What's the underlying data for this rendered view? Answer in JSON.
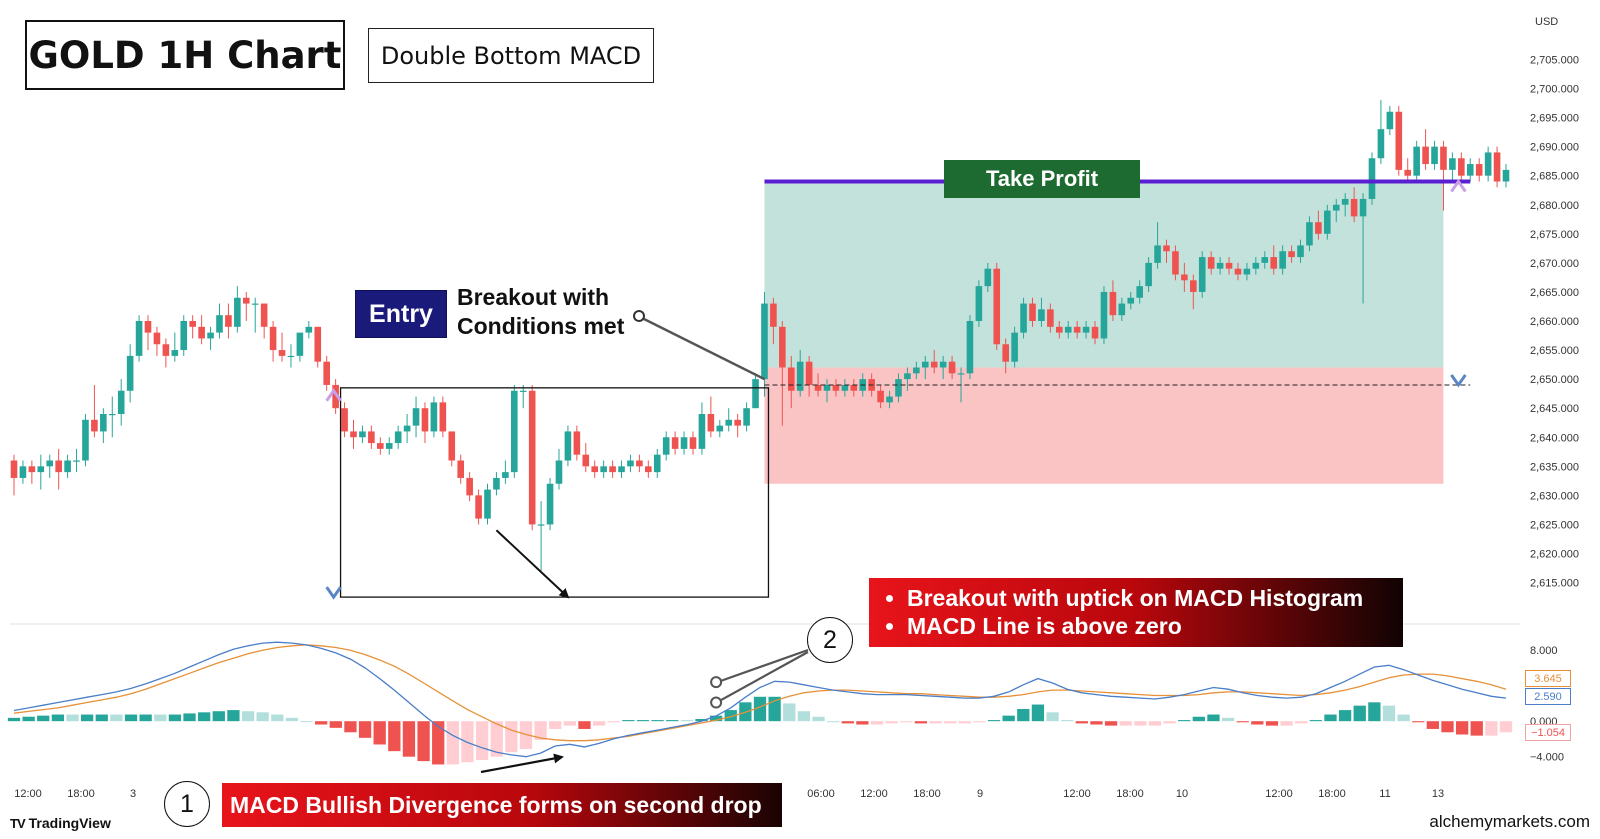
{
  "title": "GOLD 1H Chart",
  "subtitle": "Double Bottom MACD",
  "currency": "USD",
  "take_profit_label": "Take Profit",
  "entry_label": "Entry",
  "breakout_note": [
    "Breakout with",
    "Conditions met"
  ],
  "conditions": [
    "Breakout with uptick on MACD Histogram",
    "MACD Line is above zero"
  ],
  "divergence_note": "MACD Bullish Divergence forms on second drop",
  "badges": [
    "1",
    "2"
  ],
  "brand": "TradingView",
  "watermark": "alchemymarkets.com",
  "colors": {
    "bull": "#26a69a",
    "bear": "#ef5350",
    "take_profit_line": "#5a1fd1",
    "tp_zone": "#b9ddd6",
    "sl_zone": "#fbbebe",
    "macd_line": "#4a7ec8",
    "signal_line": "#e69138",
    "red_box": "#e8141b"
  },
  "chart_data": {
    "type": "candlestick",
    "symbol": "GOLD",
    "timeframe": "1H",
    "price_axis": {
      "ticks": [
        "2,705.000",
        "2,700.000",
        "2,695.000",
        "2,690.000",
        "2,685.000",
        "2,680.000",
        "2,675.000",
        "2,670.000",
        "2,665.000",
        "2,660.000",
        "2,655.000",
        "2,650.000",
        "2,645.000",
        "2,640.000",
        "2,635.000",
        "2,630.000",
        "2,625.000",
        "2,620.000",
        "2,615.000"
      ],
      "range": [
        2612,
        2708
      ]
    },
    "macd_axis": {
      "ticks": [
        "8.000",
        "0.000",
        "−4.000"
      ],
      "range": [
        -5.5,
        10.5
      ],
      "last_values": {
        "signal": "3.645",
        "macd": "2.590",
        "histogram": "−1.054"
      }
    },
    "time_labels": [
      "12:00",
      "18:00",
      "3",
      "06:00",
      "12:00",
      "18:00",
      "9",
      "12:00",
      "18:00",
      "10",
      "12:00",
      "18:00",
      "11",
      "13"
    ],
    "levels": {
      "take_profit": 2684,
      "entry": 2649,
      "stop_loss": 2632,
      "zone_top": 2684,
      "zone_split": 2652
    },
    "candles": [
      {
        "o": 2636,
        "h": 2637,
        "l": 2630,
        "c": 2633
      },
      {
        "o": 2633,
        "h": 2636,
        "l": 2632,
        "c": 2635
      },
      {
        "o": 2635,
        "h": 2636,
        "l": 2632,
        "c": 2634
      },
      {
        "o": 2634,
        "h": 2637,
        "l": 2631,
        "c": 2635
      },
      {
        "o": 2635,
        "h": 2637,
        "l": 2633,
        "c": 2636
      },
      {
        "o": 2636,
        "h": 2638,
        "l": 2631,
        "c": 2634
      },
      {
        "o": 2634,
        "h": 2637,
        "l": 2633,
        "c": 2636
      },
      {
        "o": 2636,
        "h": 2638,
        "l": 2634,
        "c": 2636
      },
      {
        "o": 2636,
        "h": 2644,
        "l": 2635,
        "c": 2643
      },
      {
        "o": 2643,
        "h": 2649,
        "l": 2640,
        "c": 2641
      },
      {
        "o": 2641,
        "h": 2645,
        "l": 2639,
        "c": 2644
      },
      {
        "o": 2644,
        "h": 2647,
        "l": 2640,
        "c": 2644
      },
      {
        "o": 2644,
        "h": 2650,
        "l": 2642,
        "c": 2648
      },
      {
        "o": 2648,
        "h": 2656,
        "l": 2646,
        "c": 2654
      },
      {
        "o": 2654,
        "h": 2661,
        "l": 2653,
        "c": 2660
      },
      {
        "o": 2660,
        "h": 2661,
        "l": 2655,
        "c": 2658
      },
      {
        "o": 2658,
        "h": 2659,
        "l": 2654,
        "c": 2656
      },
      {
        "o": 2656,
        "h": 2657,
        "l": 2652,
        "c": 2654
      },
      {
        "o": 2654,
        "h": 2658,
        "l": 2653,
        "c": 2655
      },
      {
        "o": 2655,
        "h": 2661,
        "l": 2654,
        "c": 2660
      },
      {
        "o": 2660,
        "h": 2661,
        "l": 2657,
        "c": 2659
      },
      {
        "o": 2659,
        "h": 2661,
        "l": 2656,
        "c": 2657
      },
      {
        "o": 2657,
        "h": 2659,
        "l": 2655,
        "c": 2658
      },
      {
        "o": 2658,
        "h": 2663,
        "l": 2657,
        "c": 2661
      },
      {
        "o": 2661,
        "h": 2663,
        "l": 2657,
        "c": 2659
      },
      {
        "o": 2659,
        "h": 2666,
        "l": 2658,
        "c": 2664
      },
      {
        "o": 2664,
        "h": 2665,
        "l": 2660,
        "c": 2663
      },
      {
        "o": 2663,
        "h": 2664,
        "l": 2658,
        "c": 2663
      },
      {
        "o": 2663,
        "h": 2663,
        "l": 2657,
        "c": 2659
      },
      {
        "o": 2659,
        "h": 2660,
        "l": 2653,
        "c": 2655
      },
      {
        "o": 2655,
        "h": 2658,
        "l": 2653,
        "c": 2654
      },
      {
        "o": 2654,
        "h": 2656,
        "l": 2652,
        "c": 2654
      },
      {
        "o": 2654,
        "h": 2658,
        "l": 2653,
        "c": 2658
      },
      {
        "o": 2658,
        "h": 2660,
        "l": 2657,
        "c": 2659
      },
      {
        "o": 2659,
        "h": 2659,
        "l": 2652,
        "c": 2653
      },
      {
        "o": 2653,
        "h": 2654,
        "l": 2648,
        "c": 2649
      },
      {
        "o": 2649,
        "h": 2650,
        "l": 2644,
        "c": 2645
      },
      {
        "o": 2645,
        "h": 2646,
        "l": 2640,
        "c": 2641
      },
      {
        "o": 2641,
        "h": 2643,
        "l": 2638,
        "c": 2640
      },
      {
        "o": 2640,
        "h": 2642,
        "l": 2639,
        "c": 2641
      },
      {
        "o": 2641,
        "h": 2642,
        "l": 2638,
        "c": 2639
      },
      {
        "o": 2639,
        "h": 2640,
        "l": 2637,
        "c": 2638
      },
      {
        "o": 2638,
        "h": 2640,
        "l": 2637,
        "c": 2639
      },
      {
        "o": 2639,
        "h": 2642,
        "l": 2638,
        "c": 2641
      },
      {
        "o": 2641,
        "h": 2644,
        "l": 2639,
        "c": 2642
      },
      {
        "o": 2642,
        "h": 2647,
        "l": 2640,
        "c": 2645
      },
      {
        "o": 2645,
        "h": 2646,
        "l": 2639,
        "c": 2641
      },
      {
        "o": 2641,
        "h": 2647,
        "l": 2640,
        "c": 2646
      },
      {
        "o": 2646,
        "h": 2647,
        "l": 2640,
        "c": 2641
      },
      {
        "o": 2641,
        "h": 2641,
        "l": 2635,
        "c": 2636
      },
      {
        "o": 2636,
        "h": 2637,
        "l": 2632,
        "c": 2633
      },
      {
        "o": 2633,
        "h": 2634,
        "l": 2629,
        "c": 2630
      },
      {
        "o": 2630,
        "h": 2631,
        "l": 2625,
        "c": 2626
      },
      {
        "o": 2626,
        "h": 2632,
        "l": 2625,
        "c": 2631
      },
      {
        "o": 2631,
        "h": 2634,
        "l": 2630,
        "c": 2633
      },
      {
        "o": 2633,
        "h": 2636,
        "l": 2632,
        "c": 2634
      },
      {
        "o": 2634,
        "h": 2649,
        "l": 2633,
        "c": 2648
      },
      {
        "o": 2648,
        "h": 2649,
        "l": 2645,
        "c": 2648
      },
      {
        "o": 2648,
        "h": 2649,
        "l": 2624,
        "c": 2625
      },
      {
        "o": 2625,
        "h": 2629,
        "l": 2617,
        "c": 2625
      },
      {
        "o": 2625,
        "h": 2633,
        "l": 2624,
        "c": 2632
      },
      {
        "o": 2632,
        "h": 2638,
        "l": 2631,
        "c": 2636
      },
      {
        "o": 2636,
        "h": 2642,
        "l": 2635,
        "c": 2641
      },
      {
        "o": 2641,
        "h": 2642,
        "l": 2636,
        "c": 2637
      },
      {
        "o": 2637,
        "h": 2639,
        "l": 2634,
        "c": 2635
      },
      {
        "o": 2635,
        "h": 2636,
        "l": 2633,
        "c": 2634
      },
      {
        "o": 2634,
        "h": 2636,
        "l": 2633,
        "c": 2635
      },
      {
        "o": 2635,
        "h": 2636,
        "l": 2633,
        "c": 2634
      },
      {
        "o": 2634,
        "h": 2636,
        "l": 2633,
        "c": 2635
      },
      {
        "o": 2635,
        "h": 2637,
        "l": 2634,
        "c": 2636
      },
      {
        "o": 2636,
        "h": 2637,
        "l": 2634,
        "c": 2635
      },
      {
        "o": 2635,
        "h": 2636,
        "l": 2633,
        "c": 2634
      },
      {
        "o": 2634,
        "h": 2638,
        "l": 2633,
        "c": 2637
      },
      {
        "o": 2637,
        "h": 2641,
        "l": 2636,
        "c": 2640
      },
      {
        "o": 2640,
        "h": 2641,
        "l": 2637,
        "c": 2638
      },
      {
        "o": 2638,
        "h": 2641,
        "l": 2637,
        "c": 2640
      },
      {
        "o": 2640,
        "h": 2641,
        "l": 2637,
        "c": 2638
      },
      {
        "o": 2638,
        "h": 2646,
        "l": 2637,
        "c": 2644
      },
      {
        "o": 2644,
        "h": 2647,
        "l": 2640,
        "c": 2641
      },
      {
        "o": 2641,
        "h": 2643,
        "l": 2640,
        "c": 2642
      },
      {
        "o": 2642,
        "h": 2645,
        "l": 2641,
        "c": 2643
      },
      {
        "o": 2643,
        "h": 2644,
        "l": 2640,
        "c": 2642
      },
      {
        "o": 2642,
        "h": 2646,
        "l": 2641,
        "c": 2645
      },
      {
        "o": 2645,
        "h": 2651,
        "l": 2645,
        "c": 2650
      },
      {
        "o": 2650,
        "h": 2665,
        "l": 2647,
        "c": 2663
      },
      {
        "o": 2663,
        "h": 2664,
        "l": 2656,
        "c": 2659
      },
      {
        "o": 2659,
        "h": 2660,
        "l": 2642,
        "c": 2652
      },
      {
        "o": 2652,
        "h": 2654,
        "l": 2645,
        "c": 2648
      },
      {
        "o": 2648,
        "h": 2655,
        "l": 2647,
        "c": 2653
      },
      {
        "o": 2653,
        "h": 2654,
        "l": 2647,
        "c": 2649
      },
      {
        "o": 2649,
        "h": 2651,
        "l": 2647,
        "c": 2648
      },
      {
        "o": 2648,
        "h": 2650,
        "l": 2646,
        "c": 2649
      },
      {
        "o": 2649,
        "h": 2650,
        "l": 2647,
        "c": 2648
      },
      {
        "o": 2648,
        "h": 2650,
        "l": 2647,
        "c": 2649
      },
      {
        "o": 2649,
        "h": 2650,
        "l": 2647,
        "c": 2648
      },
      {
        "o": 2648,
        "h": 2651,
        "l": 2647,
        "c": 2650
      },
      {
        "o": 2650,
        "h": 2651,
        "l": 2647,
        "c": 2648
      },
      {
        "o": 2648,
        "h": 2649,
        "l": 2645,
        "c": 2646
      },
      {
        "o": 2646,
        "h": 2648,
        "l": 2645,
        "c": 2647
      },
      {
        "o": 2647,
        "h": 2651,
        "l": 2646,
        "c": 2650
      },
      {
        "o": 2650,
        "h": 2652,
        "l": 2648,
        "c": 2651
      },
      {
        "o": 2651,
        "h": 2653,
        "l": 2650,
        "c": 2652
      },
      {
        "o": 2652,
        "h": 2654,
        "l": 2650,
        "c": 2653
      },
      {
        "o": 2653,
        "h": 2655,
        "l": 2651,
        "c": 2652
      },
      {
        "o": 2652,
        "h": 2654,
        "l": 2650,
        "c": 2653
      },
      {
        "o": 2653,
        "h": 2654,
        "l": 2650,
        "c": 2651
      },
      {
        "o": 2651,
        "h": 2652,
        "l": 2646,
        "c": 2651
      },
      {
        "o": 2651,
        "h": 2661,
        "l": 2650,
        "c": 2660
      },
      {
        "o": 2660,
        "h": 2667,
        "l": 2659,
        "c": 2666
      },
      {
        "o": 2666,
        "h": 2670,
        "l": 2665,
        "c": 2669
      },
      {
        "o": 2669,
        "h": 2670,
        "l": 2655,
        "c": 2656
      },
      {
        "o": 2656,
        "h": 2657,
        "l": 2651,
        "c": 2653
      },
      {
        "o": 2653,
        "h": 2659,
        "l": 2652,
        "c": 2658
      },
      {
        "o": 2658,
        "h": 2664,
        "l": 2657,
        "c": 2663
      },
      {
        "o": 2663,
        "h": 2664,
        "l": 2659,
        "c": 2660
      },
      {
        "o": 2660,
        "h": 2664,
        "l": 2659,
        "c": 2662
      },
      {
        "o": 2662,
        "h": 2663,
        "l": 2658,
        "c": 2659
      },
      {
        "o": 2659,
        "h": 2660,
        "l": 2657,
        "c": 2658
      },
      {
        "o": 2658,
        "h": 2660,
        "l": 2657,
        "c": 2659
      },
      {
        "o": 2659,
        "h": 2660,
        "l": 2657,
        "c": 2658
      },
      {
        "o": 2658,
        "h": 2660,
        "l": 2657,
        "c": 2659
      },
      {
        "o": 2659,
        "h": 2660,
        "l": 2656,
        "c": 2657
      },
      {
        "o": 2657,
        "h": 2666,
        "l": 2656,
        "c": 2665
      },
      {
        "o": 2665,
        "h": 2667,
        "l": 2660,
        "c": 2661
      },
      {
        "o": 2661,
        "h": 2664,
        "l": 2660,
        "c": 2663
      },
      {
        "o": 2663,
        "h": 2665,
        "l": 2662,
        "c": 2664
      },
      {
        "o": 2664,
        "h": 2667,
        "l": 2663,
        "c": 2666
      },
      {
        "o": 2666,
        "h": 2671,
        "l": 2665,
        "c": 2670
      },
      {
        "o": 2670,
        "h": 2677,
        "l": 2669,
        "c": 2673
      },
      {
        "o": 2673,
        "h": 2674,
        "l": 2670,
        "c": 2672
      },
      {
        "o": 2672,
        "h": 2673,
        "l": 2667,
        "c": 2668
      },
      {
        "o": 2668,
        "h": 2670,
        "l": 2665,
        "c": 2667
      },
      {
        "o": 2667,
        "h": 2668,
        "l": 2662,
        "c": 2665
      },
      {
        "o": 2665,
        "h": 2672,
        "l": 2664,
        "c": 2671
      },
      {
        "o": 2671,
        "h": 2672,
        "l": 2668,
        "c": 2669
      },
      {
        "o": 2669,
        "h": 2671,
        "l": 2668,
        "c": 2670
      },
      {
        "o": 2670,
        "h": 2671,
        "l": 2668,
        "c": 2669
      },
      {
        "o": 2669,
        "h": 2670,
        "l": 2667,
        "c": 2668
      },
      {
        "o": 2668,
        "h": 2670,
        "l": 2667,
        "c": 2669
      },
      {
        "o": 2669,
        "h": 2671,
        "l": 2668,
        "c": 2670
      },
      {
        "o": 2670,
        "h": 2672,
        "l": 2669,
        "c": 2671
      },
      {
        "o": 2671,
        "h": 2673,
        "l": 2668,
        "c": 2669
      },
      {
        "o": 2669,
        "h": 2673,
        "l": 2668,
        "c": 2672
      },
      {
        "o": 2672,
        "h": 2673,
        "l": 2670,
        "c": 2671
      },
      {
        "o": 2671,
        "h": 2674,
        "l": 2670,
        "c": 2673
      },
      {
        "o": 2673,
        "h": 2678,
        "l": 2672,
        "c": 2677
      },
      {
        "o": 2677,
        "h": 2679,
        "l": 2674,
        "c": 2675
      },
      {
        "o": 2675,
        "h": 2680,
        "l": 2674,
        "c": 2679
      },
      {
        "o": 2679,
        "h": 2681,
        "l": 2677,
        "c": 2680
      },
      {
        "o": 2680,
        "h": 2682,
        "l": 2678,
        "c": 2681
      },
      {
        "o": 2681,
        "h": 2683,
        "l": 2677,
        "c": 2678
      },
      {
        "o": 2678,
        "h": 2682,
        "l": 2663,
        "c": 2681
      },
      {
        "o": 2681,
        "h": 2689,
        "l": 2680,
        "c": 2688
      },
      {
        "o": 2688,
        "h": 2698,
        "l": 2687,
        "c": 2693
      },
      {
        "o": 2693,
        "h": 2697,
        "l": 2692,
        "c": 2696
      },
      {
        "o": 2696,
        "h": 2697,
        "l": 2685,
        "c": 2686
      },
      {
        "o": 2686,
        "h": 2688,
        "l": 2684,
        "c": 2685
      },
      {
        "o": 2685,
        "h": 2691,
        "l": 2684,
        "c": 2690
      },
      {
        "o": 2690,
        "h": 2693,
        "l": 2686,
        "c": 2687
      },
      {
        "o": 2687,
        "h": 2691,
        "l": 2686,
        "c": 2690
      },
      {
        "o": 2690,
        "h": 2691,
        "l": 2679,
        "c": 2686
      },
      {
        "o": 2686,
        "h": 2689,
        "l": 2684,
        "c": 2688
      },
      {
        "o": 2688,
        "h": 2689,
        "l": 2684,
        "c": 2685
      },
      {
        "o": 2685,
        "h": 2688,
        "l": 2684,
        "c": 2687
      },
      {
        "o": 2687,
        "h": 2688,
        "l": 2684,
        "c": 2685
      },
      {
        "o": 2685,
        "h": 2690,
        "l": 2684,
        "c": 2689
      },
      {
        "o": 2689,
        "h": 2690,
        "l": 2683,
        "c": 2684
      },
      {
        "o": 2684,
        "h": 2687,
        "l": 2683,
        "c": 2686
      }
    ],
    "macd": [
      1.2,
      1.5,
      1.8,
      2.1,
      2.4,
      2.7,
      3.0,
      3.3,
      3.7,
      4.2,
      4.8,
      5.4,
      6.1,
      6.8,
      7.5,
      8.1,
      8.5,
      8.8,
      8.9,
      8.8,
      8.6,
      8.2,
      7.7,
      7.0,
      6.0,
      4.8,
      3.5,
      2.1,
      0.7,
      -0.6,
      -1.6,
      -2.4,
      -3.0,
      -3.5,
      -3.8,
      -4.0,
      -3.6,
      -2.8,
      -2.6,
      -2.9,
      -2.5,
      -2.0,
      -1.6,
      -1.3,
      -1.0,
      -0.7,
      -0.4,
      0.0,
      0.6,
      1.5,
      2.7,
      3.8,
      4.5,
      4.4,
      4.1,
      3.8,
      3.5,
      3.3,
      3.1,
      3.0,
      3.0,
      3.0,
      2.9,
      2.8,
      2.7,
      2.6,
      2.6,
      2.8,
      3.3,
      4.1,
      4.8,
      4.3,
      3.6,
      3.2,
      3.0,
      2.8,
      2.7,
      2.6,
      2.5,
      2.7,
      3.0,
      3.4,
      3.8,
      3.6,
      3.2,
      2.9,
      2.7,
      2.6,
      2.7,
      3.1,
      3.8,
      4.5,
      5.3,
      6.1,
      6.3,
      5.8,
      5.2,
      4.6,
      4.1,
      3.6,
      3.2,
      2.8,
      2.6
    ],
    "signal": [
      0.9,
      1.1,
      1.3,
      1.5,
      1.8,
      2.1,
      2.4,
      2.7,
      3.1,
      3.6,
      4.2,
      4.8,
      5.4,
      6.0,
      6.6,
      7.1,
      7.6,
      8.0,
      8.3,
      8.5,
      8.6,
      8.5,
      8.3,
      8.0,
      7.5,
      6.9,
      6.2,
      5.3,
      4.3,
      3.3,
      2.3,
      1.3,
      0.5,
      -0.3,
      -1.0,
      -1.5,
      -1.9,
      -2.1,
      -2.2,
      -2.2,
      -2.1,
      -1.9,
      -1.7,
      -1.4,
      -1.1,
      -0.8,
      -0.5,
      -0.2,
      0.1,
      0.5,
      1.0,
      1.6,
      2.3,
      2.8,
      3.2,
      3.4,
      3.5,
      3.5,
      3.4,
      3.3,
      3.2,
      3.1,
      3.1,
      3.0,
      2.9,
      2.8,
      2.7,
      2.7,
      2.8,
      3.0,
      3.3,
      3.5,
      3.5,
      3.4,
      3.3,
      3.2,
      3.1,
      3.0,
      2.9,
      2.9,
      2.9,
      3.0,
      3.2,
      3.3,
      3.3,
      3.2,
      3.1,
      3.0,
      2.9,
      3.0,
      3.2,
      3.5,
      3.9,
      4.4,
      4.9,
      5.2,
      5.3,
      5.3,
      5.1,
      4.8,
      4.5,
      4.1,
      3.6
    ]
  }
}
